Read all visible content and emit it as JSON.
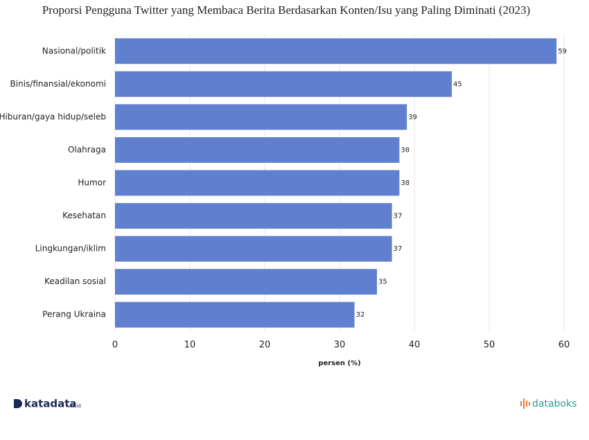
{
  "chart_data": {
    "type": "bar",
    "orientation": "horizontal",
    "title": "Proporsi Pengguna Twitter yang Membaca Berita Berdasarkan Konten/Isu yang Paling Diminati (2023)",
    "categories": [
      "Nasional/politik",
      "Binis/finansial/ekonomi",
      "Hiburan/gaya hidup/seleb",
      "Olahraga",
      "Humor",
      "Kesehatan",
      "Lingkungan/iklim",
      "Keadilan sosial",
      "Perang Ukraina"
    ],
    "values": [
      59,
      45,
      39,
      38,
      38,
      37,
      37,
      35,
      32
    ],
    "color": "#6080cf",
    "xlabel": "persen (%)",
    "xlim": [
      0,
      60
    ],
    "xticks": [
      0,
      10,
      20,
      30,
      40,
      50,
      60
    ],
    "grid": true
  },
  "branding": {
    "left": "katadata",
    "left_suffix": ".co.id",
    "right": "databoks"
  }
}
